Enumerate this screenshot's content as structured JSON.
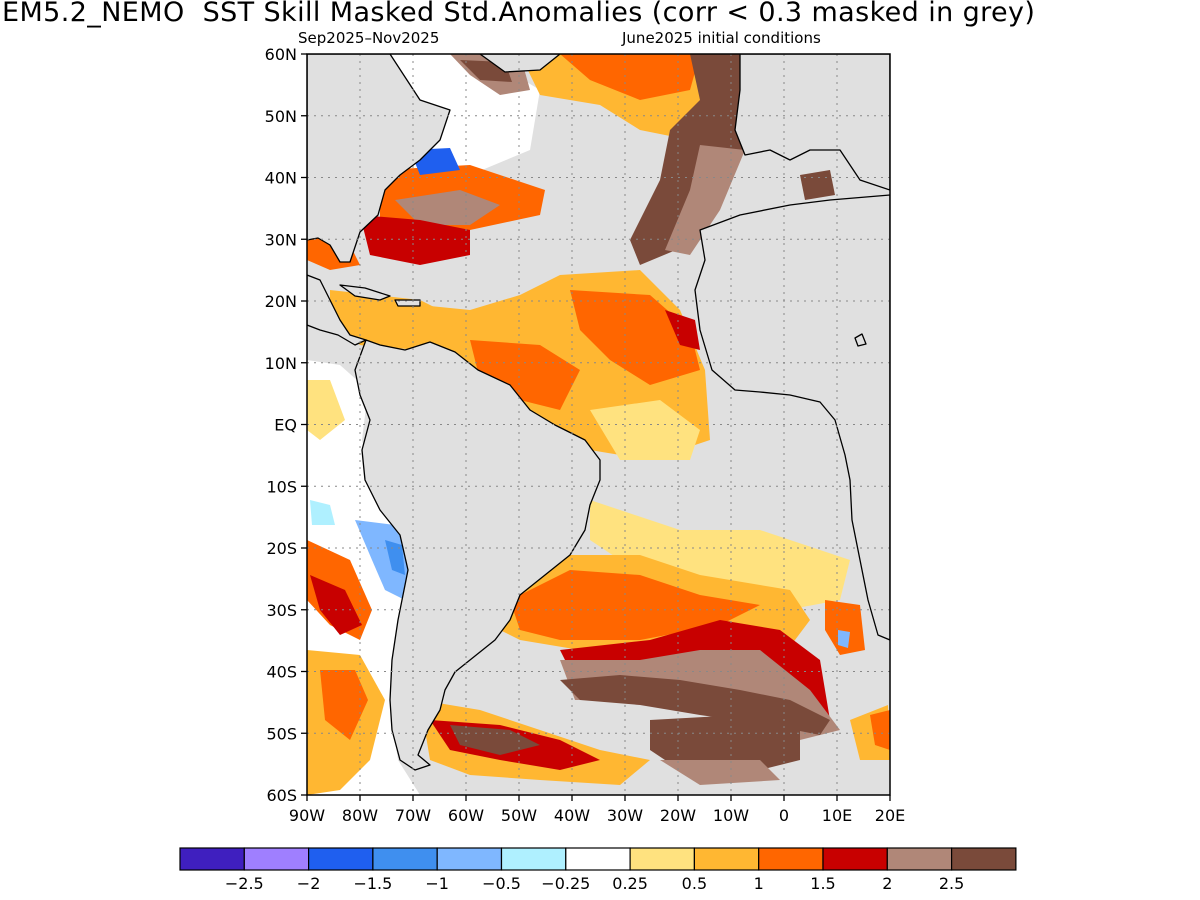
{
  "title": "EM5.2_NEMO  SST Skill Masked Std.Anomalies (corr < 0.3 masked in grey)",
  "subtitle_left": "Sep2025–Nov2025",
  "subtitle_right": "June2025 initial conditions",
  "map": {
    "lat_labels": [
      "60N",
      "50N",
      "40N",
      "30N",
      "20N",
      "10N",
      "EQ",
      "10S",
      "20S",
      "30S",
      "40S",
      "50S",
      "60S"
    ],
    "lon_labels": [
      "90W",
      "80W",
      "70W",
      "60W",
      "50W",
      "40W",
      "30W",
      "20W",
      "10W",
      "0",
      "10E",
      "20E"
    ],
    "lon_range": [
      -90,
      20
    ],
    "lat_range": [
      -60,
      60
    ],
    "mask_color": "#e0e0e0",
    "land_color": "#e0e0e0"
  },
  "colorbar": {
    "colors": [
      "#3f1fbf",
      "#9f7fff",
      "#1f5fef",
      "#3f8fef",
      "#7fb7ff",
      "#aff0ff",
      "#ffffff",
      "#ffe27f",
      "#ffb732",
      "#ff6600",
      "#c80000",
      "#b08778",
      "#7a4a3a"
    ],
    "labels": [
      "−2.5",
      "−2",
      "−1.5",
      "−1",
      "−0.5",
      "−0.25",
      "0.25",
      "0.5",
      "1",
      "1.5",
      "2",
      "2.5"
    ]
  }
}
